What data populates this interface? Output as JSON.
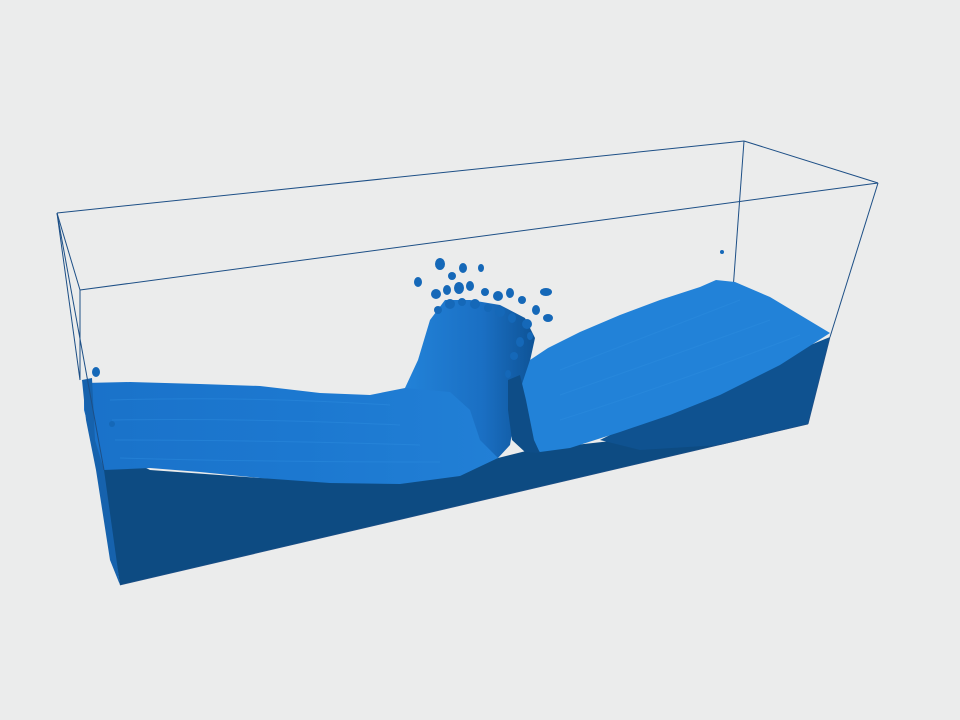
{
  "scene": {
    "subject": "fluid-simulation-render",
    "background_color": "#ebecec",
    "box_outline_color": "#1d4f86",
    "fluid_top_color": "#1a74cc",
    "fluid_top_light_color": "#2683d8",
    "fluid_side_color": "#0f4f88",
    "fluid_front_color": "#0c4a80",
    "spray_color": "#1568b8"
  }
}
